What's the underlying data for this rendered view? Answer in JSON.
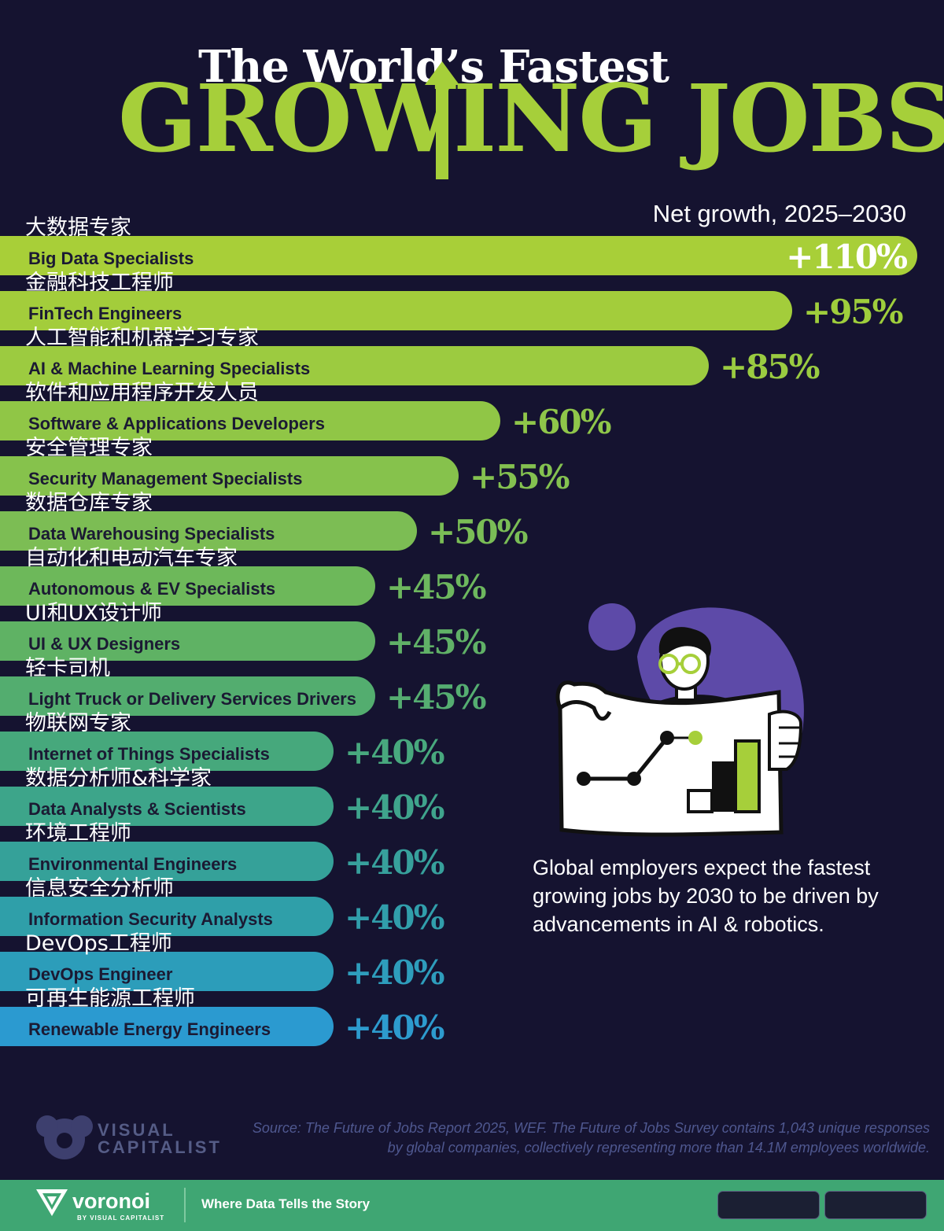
{
  "title": {
    "line1": "The World’s Fastest",
    "line2": "GROWING JOBS"
  },
  "subtitle": "Net growth, 2025–2030",
  "chart_data": {
    "type": "bar",
    "orientation": "horizontal",
    "ylabel": "Net growth, 2025–2030",
    "categories_zh": [
      "大数据专家",
      "金融科技工程师",
      "人工智能和机器学习专家",
      "软件和应用程序开发人员",
      "安全管理专家",
      "数据仓库专家",
      "自动化和电动汽车专家",
      "UI和UX设计师",
      "轻卡司机",
      "物联网专家",
      "数据分析师&科学家",
      "环境工程师",
      "信息安全分析师",
      "DevOps工程师",
      "可再生能源工程师"
    ],
    "categories": [
      "Big Data Specialists",
      "FinTech Engineers",
      "AI & Machine Learning Specialists",
      "Software & Applications Developers",
      "Security Management Specialists",
      "Data Warehousing Specialists",
      "Autonomous & EV Specialists",
      "UI & UX Designers",
      "Light Truck or Delivery Services Drivers",
      "Internet of Things Specialists",
      "Data Analysts & Scientists",
      "Environmental Engineers",
      "Information Security Analysts",
      "DevOps Engineer",
      "Renewable Energy Engineers"
    ],
    "values": [
      110,
      95,
      85,
      60,
      55,
      50,
      45,
      45,
      45,
      40,
      40,
      40,
      40,
      40,
      40
    ],
    "value_labels": [
      "+110%",
      "+95%",
      "+85%",
      "+60%",
      "+55%",
      "+50%",
      "+45%",
      "+45%",
      "+45%",
      "+40%",
      "+40%",
      "+40%",
      "+40%",
      "+40%",
      "+40%"
    ],
    "unit": "%",
    "colors": [
      "#a8cf38",
      "#a3cd3b",
      "#9ccb40",
      "#90c646",
      "#86c24c",
      "#7cbd54",
      "#6db85a",
      "#5fb264",
      "#53ad6f",
      "#46a87c",
      "#3da58a",
      "#35a199",
      "#2f9fa9",
      "#2c9dba",
      "#2b9ad0"
    ],
    "label_colors": [
      "#ffffff",
      "#9fce3c",
      "#9acb41",
      "#8fc64a",
      "#84c150",
      "#7abd56",
      "#6db75e",
      "#60b167",
      "#55ad71",
      "#48a87e",
      "#3fa48c",
      "#37a09c",
      "#319eab",
      "#2e9dbc",
      "#2d9bce"
    ]
  },
  "callout": "Global employers expect the fastest growing jobs by 2030 to be driven by advancements in AI & robotics.",
  "source": "Source: The Future of Jobs Report 2025, WEF. The Future of Jobs Survey contains 1,043 unique responses by global companies, collectively representing more than 14.1M employees worldwide.",
  "brand": {
    "vc_line1": "VISUAL",
    "vc_line2": "CAPITALIST",
    "voronoi": "voronoi",
    "voronoi_by": "BY VISUAL CAPITALIST",
    "tagline": "Where Data Tells the Story"
  },
  "colors": {
    "background": "#151330",
    "title_green": "#a6cf3a",
    "footer_green": "#3fa673",
    "illustration_purple": "#5d4aa8"
  }
}
